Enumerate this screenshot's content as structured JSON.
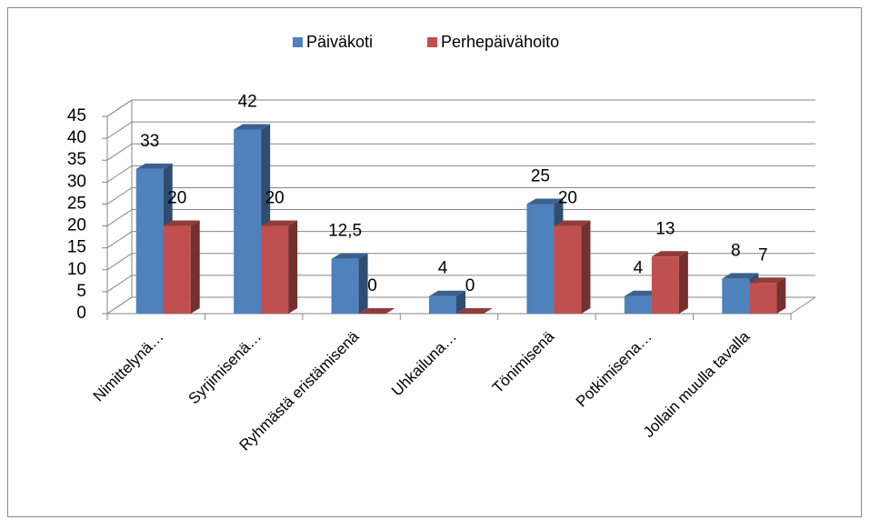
{
  "chart_data": {
    "type": "bar3d",
    "categories": [
      "Nimittelynä…",
      "Syrjimisenä…",
      "Ryhmästä eristämisenä",
      "Uhkailuna…",
      "Tönimisenä",
      "Potkimisena…",
      "Jollain muulla tavalla"
    ],
    "series": [
      {
        "name": "Päiväkoti",
        "color": "#4f81bd",
        "values": [
          33,
          42,
          12.5,
          4,
          25,
          4,
          8
        ],
        "value_labels": [
          "33",
          "42",
          "12,5",
          "4",
          "25",
          "4",
          "8"
        ]
      },
      {
        "name": "Perhepäivähoito",
        "color": "#c0504d",
        "values": [
          20,
          20,
          0,
          0,
          20,
          13,
          7
        ]
      }
    ],
    "ylim": [
      0,
      45
    ],
    "yticks": [
      0,
      5,
      10,
      15,
      20,
      25,
      30,
      35,
      40,
      45
    ],
    "grid": true,
    "legend": "top"
  }
}
